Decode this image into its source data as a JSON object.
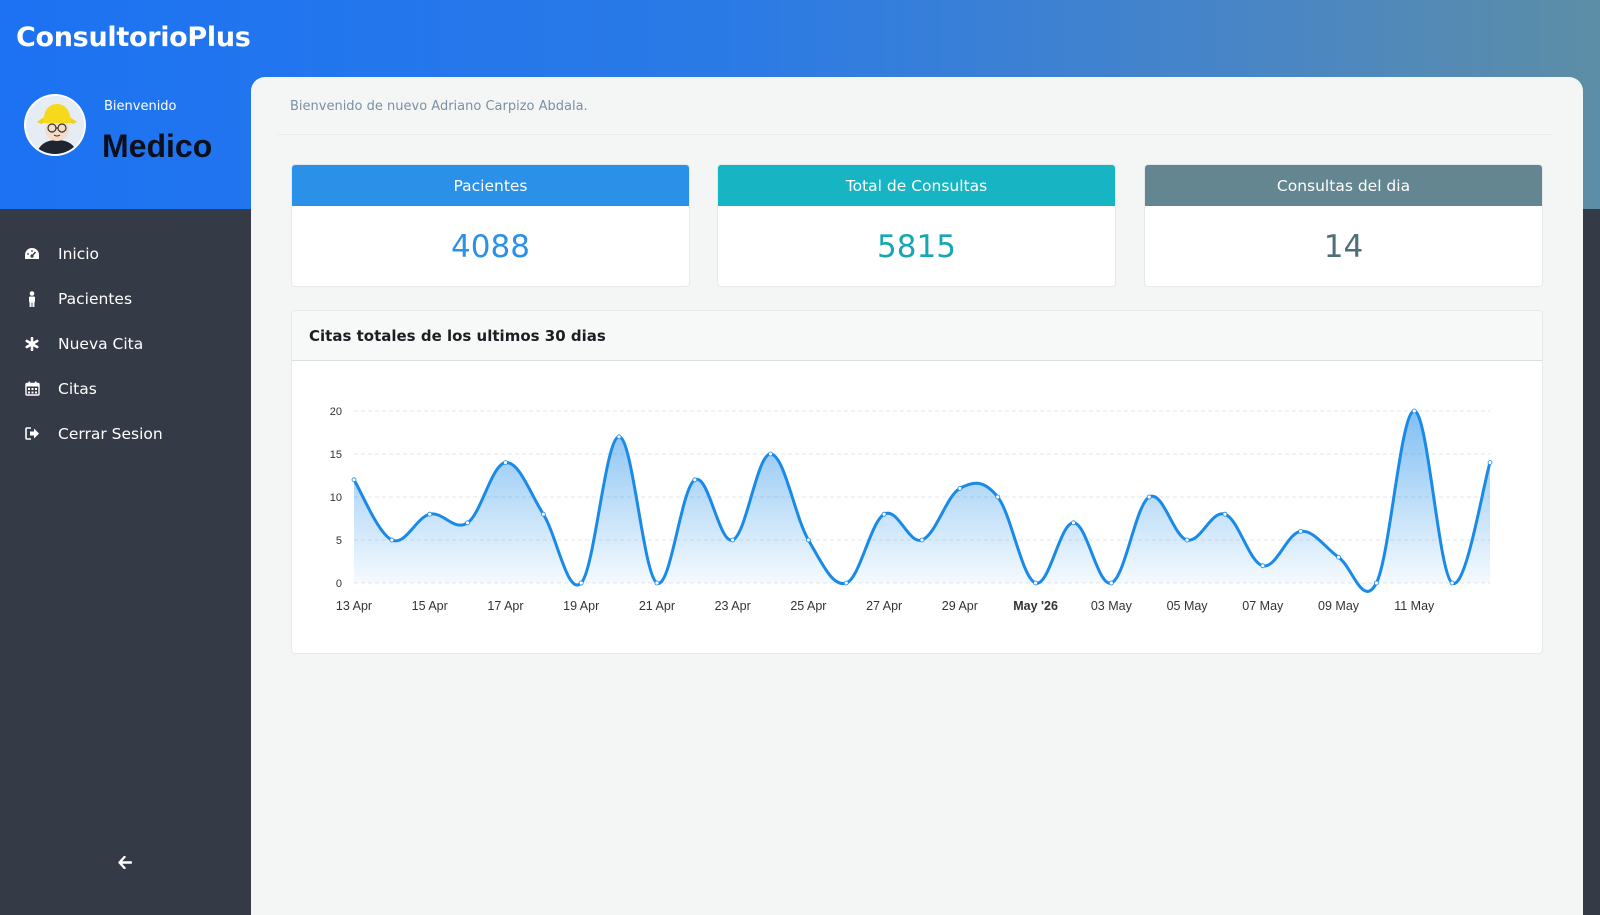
{
  "app": {
    "title": "ConsultorioPlus"
  },
  "user": {
    "welcome": "Bienvenido",
    "role": "Medico"
  },
  "sidebar": {
    "items": [
      {
        "label": "Inicio",
        "icon": "dashboard-icon"
      },
      {
        "label": "Pacientes",
        "icon": "person-icon"
      },
      {
        "label": "Nueva Cita",
        "icon": "asterisk-icon"
      },
      {
        "label": "Citas",
        "icon": "calendar-icon"
      },
      {
        "label": "Cerrar Sesion",
        "icon": "sign-out-icon"
      }
    ],
    "collapse_icon": "arrow-left-icon"
  },
  "main": {
    "greeting": "Bienvenido de nuevo Adriano Carpizo Abdala."
  },
  "cards": [
    {
      "title": "Pacientes",
      "value": "4088",
      "color": "#2b90e8",
      "value_color": "#2b90e8"
    },
    {
      "title": "Total de Consultas",
      "value": "5815",
      "color": "#17b5c3",
      "value_color": "#17a6b5"
    },
    {
      "title": "Consultas del dia",
      "value": "14",
      "color": "#638691",
      "value_color": "#4d6f79"
    }
  ],
  "chart_panel": {
    "title": "Citas totales de los ultimos 30 dias"
  },
  "chart_data": {
    "type": "area",
    "title": "Citas totales de los ultimos 30 dias",
    "x": [
      "2026-04-13",
      "2026-04-14",
      "2026-04-15",
      "2026-04-16",
      "2026-04-17",
      "2026-04-18",
      "2026-04-19",
      "2026-04-20",
      "2026-04-21",
      "2026-04-22",
      "2026-04-23",
      "2026-04-24",
      "2026-04-25",
      "2026-04-26",
      "2026-04-27",
      "2026-04-28",
      "2026-04-29",
      "2026-04-30",
      "2026-05-01",
      "2026-05-02",
      "2026-05-03",
      "2026-05-04",
      "2026-05-05",
      "2026-05-06",
      "2026-05-07",
      "2026-05-08",
      "2026-05-09",
      "2026-05-10",
      "2026-05-11",
      "2026-05-12",
      "2026-05-13"
    ],
    "series": [
      {
        "values": [
          12,
          5,
          8,
          7,
          14,
          8,
          0,
          17,
          0,
          12,
          5,
          15,
          5,
          0,
          8,
          5,
          11,
          10,
          0,
          7,
          0,
          10,
          5,
          8,
          2,
          6,
          3,
          0,
          20,
          0,
          14
        ]
      }
    ],
    "ylim": [
      0,
      20
    ],
    "yticks": [
      "0",
      "5",
      "10",
      "15",
      "20"
    ],
    "xtick_labels": [
      "13 Apr",
      "15 Apr",
      "17 Apr",
      "19 Apr",
      "21 Apr",
      "23 Apr",
      "25 Apr",
      "27 Apr",
      "29 Apr",
      "May '26",
      "03 May",
      "05 May",
      "07 May",
      "09 May",
      "11 May"
    ],
    "grid": true,
    "line_color": "#1a8ae8"
  }
}
